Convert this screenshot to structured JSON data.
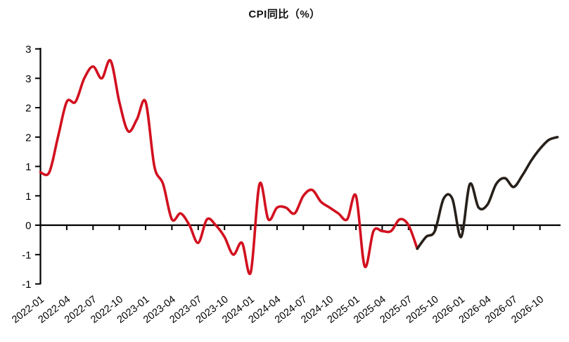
{
  "title": "CPI同比（%）",
  "colors": {
    "historical_line": "#d2101f",
    "forecast_line": "#27201a",
    "axis": "#000000",
    "background": "#ffffff"
  },
  "chart_data": {
    "type": "line",
    "title": "CPI同比（%）",
    "xlabel": "",
    "ylabel": "",
    "grid": false,
    "legend": "none",
    "ylim": [
      -1,
      3
    ],
    "x_range": [
      "2022-01",
      "2026-12"
    ],
    "y_ticks": [
      {
        "value": 3,
        "label": "3"
      },
      {
        "value": 2.5,
        "label": "3"
      },
      {
        "value": 2,
        "label": "2"
      },
      {
        "value": 1.5,
        "label": "2"
      },
      {
        "value": 1,
        "label": "1"
      },
      {
        "value": 0.5,
        "label": "1"
      },
      {
        "value": 0,
        "label": "0"
      },
      {
        "value": -0.5,
        "label": "-1"
      },
      {
        "value": -1,
        "label": "-1"
      }
    ],
    "x_tick_labels": [
      "2022-01",
      "2022-04",
      "2022-07",
      "2022-10",
      "2023-01",
      "2023-04",
      "2023-07",
      "2023-10",
      "2024-01",
      "2024-04",
      "2024-07",
      "2024-10",
      "2025-01",
      "2025-04",
      "2025-07",
      "2025-10",
      "2026-01",
      "2026-04",
      "2026-07",
      "2026-10"
    ],
    "series": [
      {
        "name": "historical",
        "color": "#d2101f",
        "start": "2022-01",
        "values": [
          0.9,
          0.9,
          1.5,
          2.1,
          2.1,
          2.5,
          2.7,
          2.5,
          2.8,
          2.1,
          1.6,
          1.8,
          2.1,
          1.0,
          0.7,
          0.1,
          0.2,
          0.0,
          -0.3,
          0.1,
          0.0,
          -0.2,
          -0.5,
          -0.3,
          -0.8,
          0.7,
          0.1,
          0.3,
          0.3,
          0.2,
          0.5,
          0.6,
          0.4,
          0.3,
          0.2,
          0.1,
          0.5,
          -0.7,
          -0.1,
          -0.1,
          -0.1,
          0.1,
          0.0,
          -0.4
        ]
      },
      {
        "name": "forecast",
        "color": "#27201a",
        "start": "2025-08",
        "values": [
          -0.4,
          -0.2,
          -0.1,
          0.45,
          0.45,
          -0.2,
          0.7,
          0.3,
          0.35,
          0.7,
          0.8,
          0.65,
          0.85,
          1.1,
          1.3,
          1.45,
          1.5
        ]
      }
    ]
  }
}
